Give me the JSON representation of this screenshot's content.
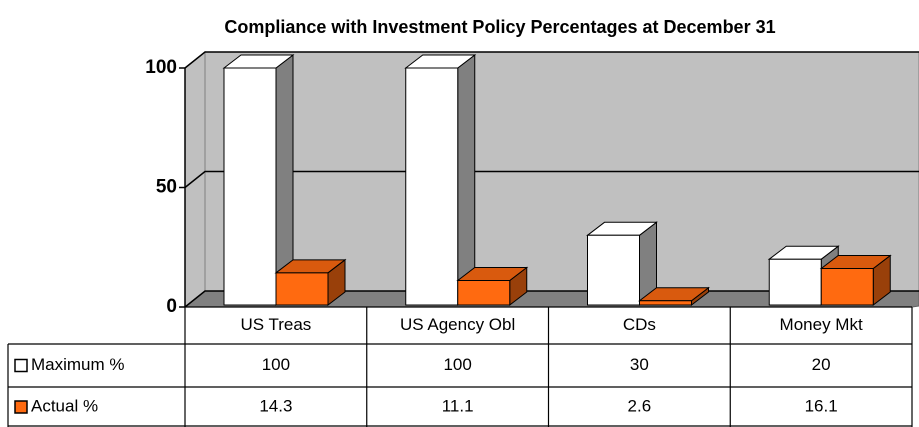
{
  "chart_data": {
    "type": "bar3d",
    "title": "Compliance with Investment Policy Percentages at December 31",
    "categories": [
      "US Treas",
      "US Agency Obl",
      "CDs",
      "Money Mkt"
    ],
    "series": [
      {
        "name": "Maximum %",
        "color": "#ffffff",
        "values": [
          100,
          100,
          30,
          20
        ]
      },
      {
        "name": "Actual %",
        "color": "#ff6a10",
        "values": [
          14.3,
          11.1,
          2.6,
          16.1
        ]
      }
    ],
    "ylim": [
      0,
      100
    ],
    "yticks": [
      0,
      50,
      100
    ],
    "grid": true,
    "data_table": true
  }
}
